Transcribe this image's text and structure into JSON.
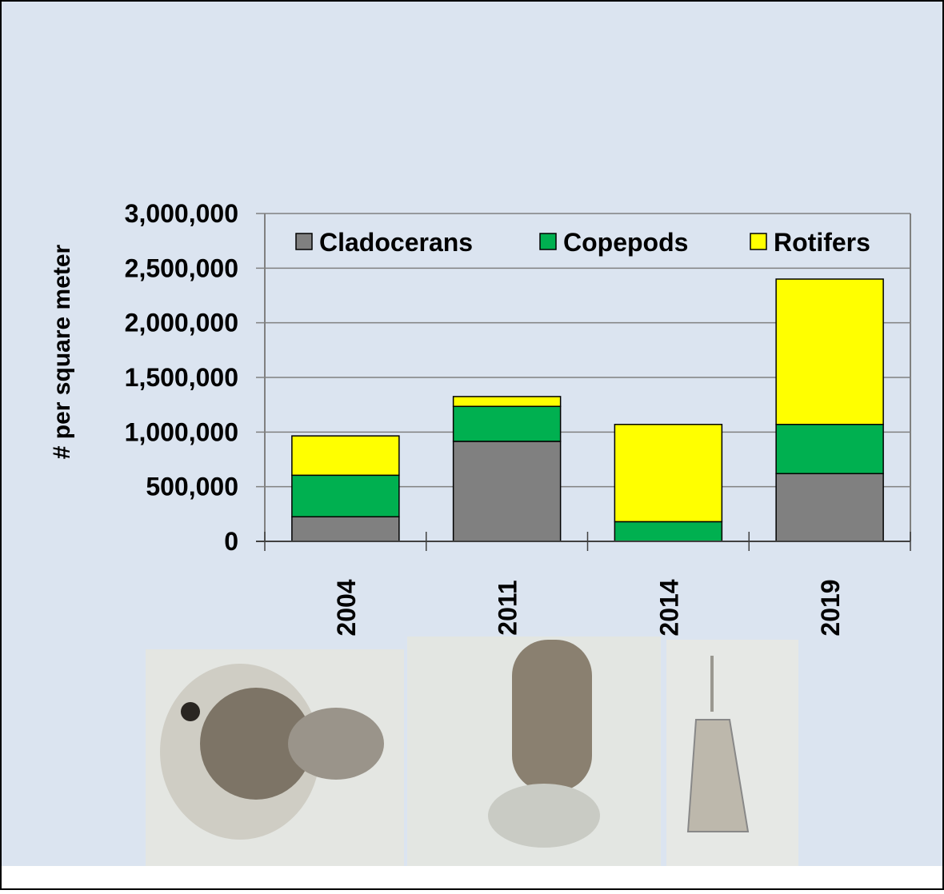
{
  "chart_data": {
    "type": "stacked_bar",
    "ylabel": "# per square meter",
    "categories": [
      "2004",
      "2011",
      "2014",
      "2019"
    ],
    "series": [
      {
        "name": "Cladocerans",
        "color": "#808080",
        "values": [
          225000,
          915000,
          0,
          620000
        ]
      },
      {
        "name": "Copepods",
        "color": "#00b050",
        "values": [
          380000,
          320000,
          180000,
          450000
        ]
      },
      {
        "name": "Rotifers",
        "color": "#ffff00",
        "values": [
          360000,
          90000,
          890000,
          1330000
        ]
      }
    ],
    "ylim": [
      0,
      3000000
    ],
    "yticks": [
      0,
      {
        "value": 500000,
        "label": "500,000"
      },
      {
        "value": 1000000,
        "label": "1,000,000"
      },
      {
        "value": 1500000,
        "label": "1,500,000"
      },
      {
        "value": 2000000,
        "label": "2,000,000"
      },
      {
        "value": 2500000,
        "label": "2,500,000"
      },
      {
        "value": 3000000,
        "label": "3,000,000"
      }
    ],
    "grid": true,
    "legend": "top"
  }
}
